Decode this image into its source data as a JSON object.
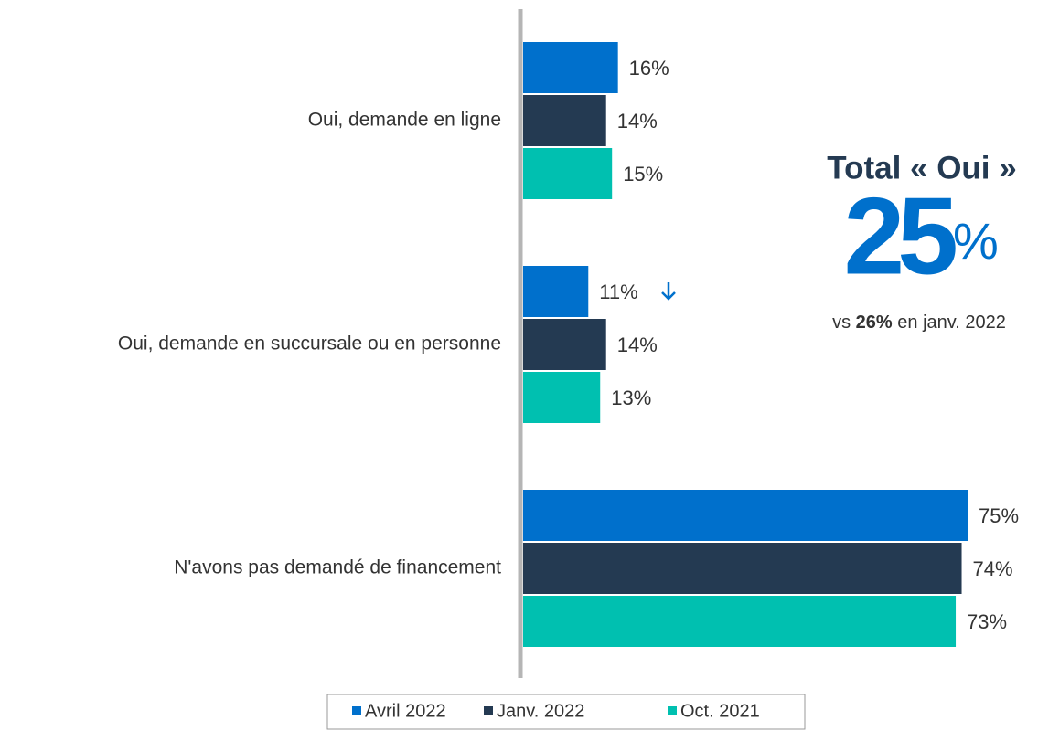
{
  "chart_data": {
    "type": "bar",
    "orientation": "horizontal",
    "categories": [
      "Oui, demande en ligne",
      "Oui, demande en succursale ou en personne",
      "N'avons pas demandé de financement"
    ],
    "series": [
      {
        "name": "Avril 2022",
        "color": "#0070cc",
        "values": [
          16,
          11,
          75
        ],
        "value_labels": [
          "16%",
          "11%",
          "75%"
        ]
      },
      {
        "name": "Janv. 2022",
        "color": "#243a52",
        "values": [
          14,
          14,
          74
        ],
        "value_labels": [
          "14%",
          "14%",
          "74%"
        ]
      },
      {
        "name": "Oct. 2021",
        "color": "#00c0b0",
        "values": [
          15,
          13,
          73
        ],
        "value_labels": [
          "15%",
          "13%",
          "73%"
        ]
      }
    ],
    "annotation": {
      "title": "Total « Oui »",
      "value": "25",
      "unit": "%",
      "note": [
        "vs",
        "26%",
        "en janv. 2022"
      ]
    },
    "legend": "bottom"
  }
}
